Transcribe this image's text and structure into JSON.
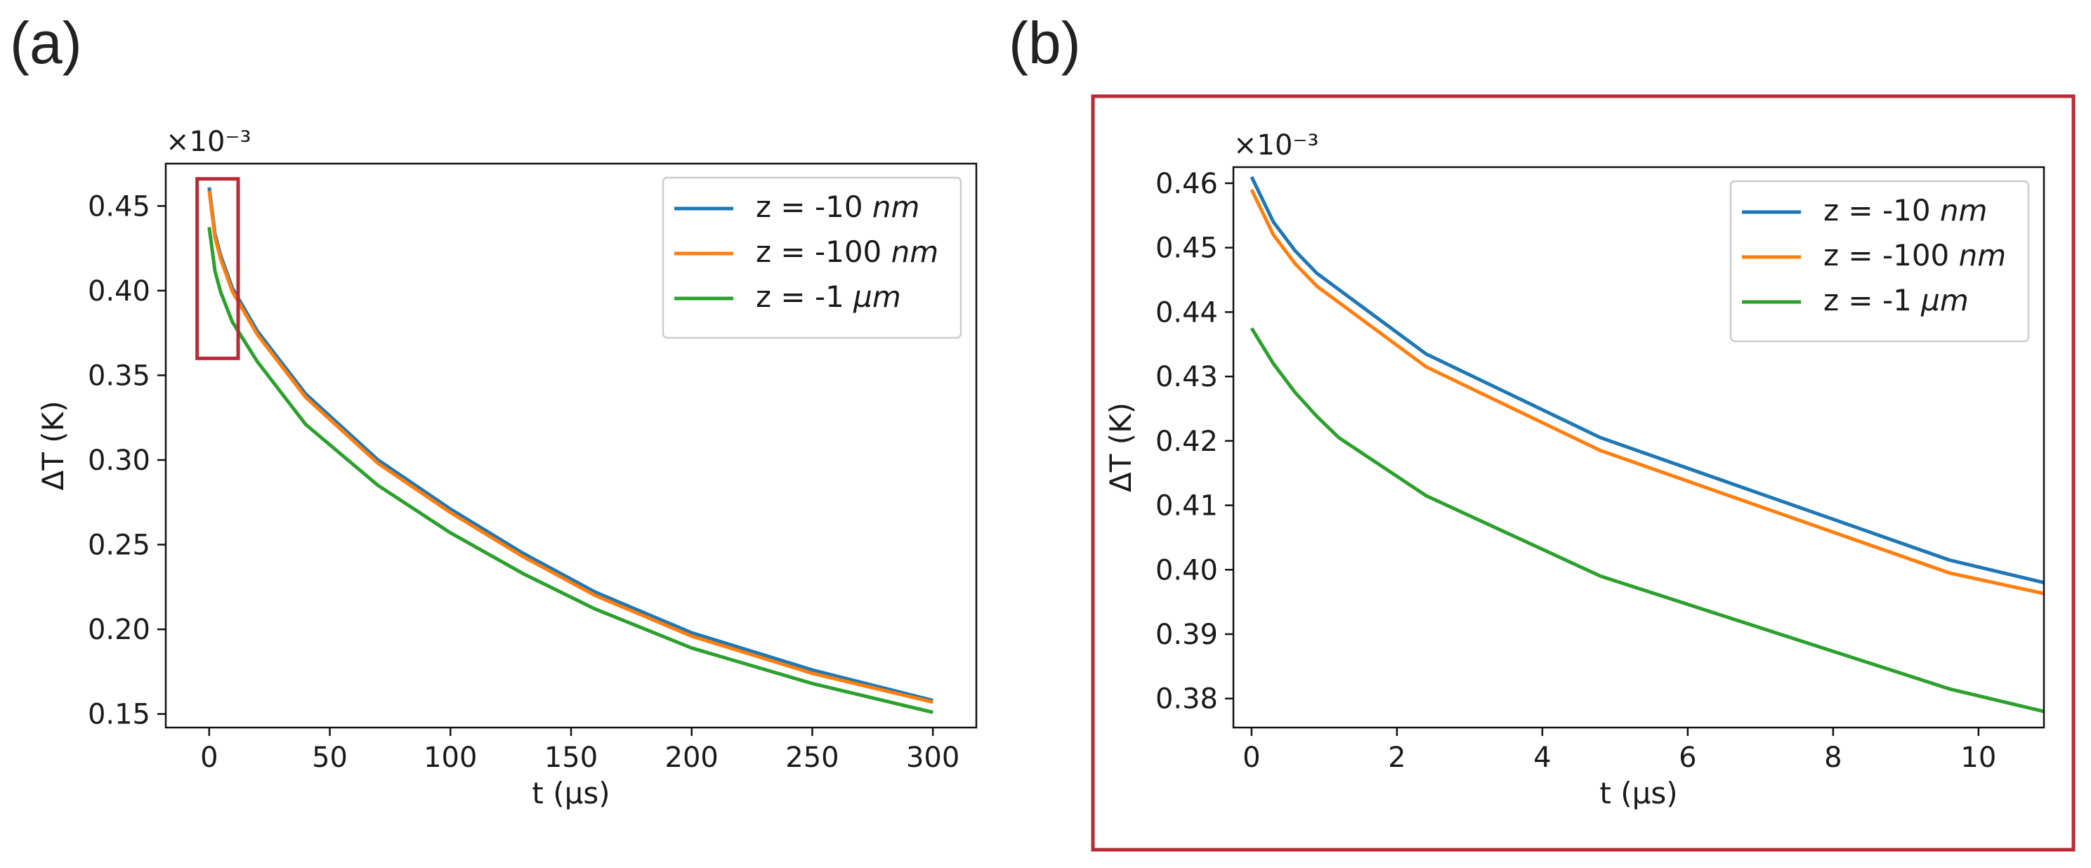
{
  "panels": {
    "a": {
      "label": "(a)"
    },
    "b": {
      "label": "(b)"
    }
  },
  "chart_data": [
    {
      "id": "a",
      "type": "line",
      "title": "",
      "xlabel": "t (μs)",
      "ylabel": "ΔT (K)",
      "xlim": [
        -18,
        318
      ],
      "ylim": [
        0.142,
        0.475
      ],
      "xticks": [
        0,
        50,
        100,
        150,
        200,
        250,
        300
      ],
      "yticks": [
        0.15,
        0.2,
        0.25,
        0.3,
        0.35,
        0.4,
        0.45
      ],
      "ytick_labels": [
        "0.15",
        "0.20",
        "0.25",
        "0.30",
        "0.35",
        "0.40",
        "0.45"
      ],
      "xtick_labels": [
        "0",
        "50",
        "100",
        "150",
        "200",
        "250",
        "300"
      ],
      "multiplier": "×10⁻³",
      "grid": false,
      "legend_position": "top-right",
      "annotation": {
        "type": "highlight-box",
        "x_range": [
          -5,
          12
        ],
        "y_range": [
          0.36,
          0.466
        ]
      },
      "series": [
        {
          "name": "z = -10 ",
          "unit": "nm",
          "color": "#1f77b4",
          "x": [
            0,
            2.4,
            4.8,
            9.6,
            20,
            40,
            70,
            100,
            130,
            160,
            200,
            250,
            300
          ],
          "y": [
            0.461,
            0.4335,
            0.4205,
            0.4015,
            0.376,
            0.339,
            0.3,
            0.271,
            0.245,
            0.222,
            0.198,
            0.176,
            0.158
          ]
        },
        {
          "name": "z = -100 ",
          "unit": "nm",
          "color": "#ff7f0e",
          "x": [
            0,
            2.4,
            4.8,
            9.6,
            20,
            40,
            70,
            100,
            130,
            160,
            200,
            250,
            300
          ],
          "y": [
            0.459,
            0.4315,
            0.4185,
            0.3995,
            0.374,
            0.337,
            0.298,
            0.269,
            0.243,
            0.22,
            0.196,
            0.174,
            0.157
          ]
        },
        {
          "name": "z = -1 ",
          "unit": "μm",
          "color": "#2ca02c",
          "x": [
            0,
            2.4,
            4.8,
            9.6,
            20,
            40,
            70,
            100,
            130,
            160,
            200,
            250,
            300
          ],
          "y": [
            0.4375,
            0.4115,
            0.399,
            0.3815,
            0.358,
            0.321,
            0.285,
            0.257,
            0.233,
            0.212,
            0.189,
            0.168,
            0.151
          ]
        }
      ]
    },
    {
      "id": "b",
      "type": "line",
      "title": "",
      "xlabel": "t (μs)",
      "ylabel": "ΔT (K)",
      "xlim": [
        -0.25,
        10.9
      ],
      "ylim": [
        0.3755,
        0.4625
      ],
      "xticks": [
        0,
        2,
        4,
        6,
        8,
        10
      ],
      "xtick_labels": [
        "0",
        "2",
        "4",
        "6",
        "8",
        "10"
      ],
      "yticks": [
        0.38,
        0.39,
        0.4,
        0.41,
        0.42,
        0.43,
        0.44,
        0.45,
        0.46
      ],
      "ytick_labels": [
        "0.38",
        "0.39",
        "0.40",
        "0.41",
        "0.42",
        "0.43",
        "0.44",
        "0.45",
        "0.46"
      ],
      "multiplier": "×10⁻³",
      "grid": false,
      "legend_position": "top-right",
      "series": [
        {
          "name": "z = -10 ",
          "unit": "nm",
          "color": "#1f77b4",
          "x": [
            0,
            0.3,
            0.6,
            0.9,
            1.2,
            2.4,
            4.8,
            9.6,
            10.9
          ],
          "y": [
            0.461,
            0.454,
            0.4495,
            0.446,
            0.4435,
            0.4335,
            0.4205,
            0.4015,
            0.398
          ]
        },
        {
          "name": "z = -100 ",
          "unit": "nm",
          "color": "#ff7f0e",
          "x": [
            0,
            0.3,
            0.6,
            0.9,
            1.2,
            2.4,
            4.8,
            9.6,
            10.9
          ],
          "y": [
            0.459,
            0.452,
            0.4475,
            0.444,
            0.4415,
            0.4315,
            0.4185,
            0.3995,
            0.3963
          ]
        },
        {
          "name": "z = -1 ",
          "unit": "μm",
          "color": "#2ca02c",
          "x": [
            0,
            0.3,
            0.6,
            0.9,
            1.2,
            2.4,
            4.8,
            9.6,
            10.9
          ],
          "y": [
            0.4375,
            0.432,
            0.4275,
            0.4238,
            0.4205,
            0.4115,
            0.399,
            0.3815,
            0.378
          ]
        }
      ]
    }
  ]
}
